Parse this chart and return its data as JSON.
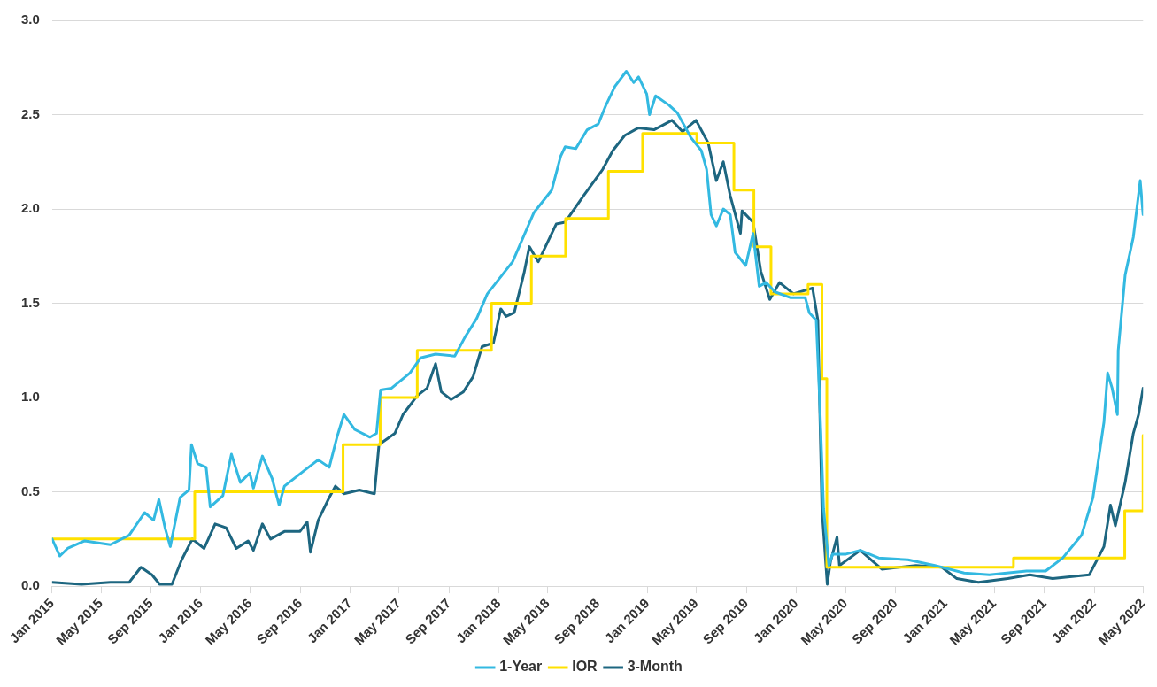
{
  "chart_data": {
    "type": "line",
    "legend": "bottom",
    "grid": "y",
    "marker": "none",
    "line_style": "solid",
    "ylim": [
      0,
      3
    ],
    "yticks": [
      {
        "value": 0,
        "label": "0.0"
      },
      {
        "value": 0.5,
        "label": "0.5"
      },
      {
        "value": 1,
        "label": "1.0"
      },
      {
        "value": 1.5,
        "label": "1.5"
      },
      {
        "value": 2,
        "label": "2.0"
      },
      {
        "value": 2.5,
        "label": "2.5"
      },
      {
        "value": 3,
        "label": "3.0"
      }
    ],
    "xlim": [
      "2015-01-01",
      "2022-05-01"
    ],
    "xticks": [
      {
        "value": "2015-01",
        "label": "Jan 2015"
      },
      {
        "value": "2015-05",
        "label": "May 2015"
      },
      {
        "value": "2015-09",
        "label": "Sep 2015"
      },
      {
        "value": "2016-01",
        "label": "Jan 2016"
      },
      {
        "value": "2016-05",
        "label": "May 2016"
      },
      {
        "value": "2016-09",
        "label": "Sep 2016"
      },
      {
        "value": "2017-01",
        "label": "Jan 2017"
      },
      {
        "value": "2017-05",
        "label": "May 2017"
      },
      {
        "value": "2017-09",
        "label": "Sep 2017"
      },
      {
        "value": "2018-01",
        "label": "Jan 2018"
      },
      {
        "value": "2018-05",
        "label": "May 2018"
      },
      {
        "value": "2018-09",
        "label": "Sep 2018"
      },
      {
        "value": "2019-01",
        "label": "Jan 2019"
      },
      {
        "value": "2019-05",
        "label": "May 2019"
      },
      {
        "value": "2019-09",
        "label": "Sep 2019"
      },
      {
        "value": "2020-01",
        "label": "Jan 2020"
      },
      {
        "value": "2020-05",
        "label": "May 2020"
      },
      {
        "value": "2020-09",
        "label": "Sep 2020"
      },
      {
        "value": "2021-01",
        "label": "Jan 2021"
      },
      {
        "value": "2021-05",
        "label": "May 2021"
      },
      {
        "value": "2021-09",
        "label": "Sep 2021"
      },
      {
        "value": "2022-01",
        "label": "Jan 2022"
      },
      {
        "value": "2022-05",
        "label": "May 2022"
      }
    ],
    "series": [
      {
        "name": "1-Year",
        "type": "line",
        "color": "#33b9e1",
        "x": [
          "2015-01-01",
          "2015-01-20",
          "2015-02-08",
          "2015-03-22",
          "2015-05-24",
          "2015-07-09",
          "2015-08-16",
          "2015-09-07",
          "2015-09-20",
          "2015-10-05",
          "2015-10-18",
          "2015-11-11",
          "2015-12-03",
          "2015-12-09",
          "2015-12-24",
          "2016-01-14",
          "2016-01-24",
          "2016-02-24",
          "2016-03-16",
          "2016-04-07",
          "2016-04-30",
          "2016-05-09",
          "2016-05-31",
          "2016-06-24",
          "2016-07-11",
          "2016-07-24",
          "2016-09-09",
          "2016-10-15",
          "2016-11-11",
          "2016-11-30",
          "2016-12-17",
          "2017-01-13",
          "2017-02-19",
          "2017-03-07",
          "2017-03-17",
          "2017-04-13",
          "2017-05-28",
          "2017-06-23",
          "2017-07-30",
          "2017-09-15",
          "2017-10-10",
          "2017-11-08",
          "2017-12-04",
          "2018-02-04",
          "2018-03-28",
          "2018-05-11",
          "2018-06-02",
          "2018-06-13",
          "2018-07-09",
          "2018-08-06",
          "2018-09-02",
          "2018-09-21",
          "2018-10-13",
          "2018-11-10",
          "2018-11-28",
          "2018-12-10",
          "2018-12-30",
          "2019-01-06",
          "2019-01-21",
          "2019-02-23",
          "2019-03-15",
          "2019-04-17",
          "2019-05-13",
          "2019-05-26",
          "2019-06-06",
          "2019-06-19",
          "2019-07-06",
          "2019-07-23",
          "2019-08-04",
          "2019-08-30",
          "2019-09-17",
          "2019-10-02",
          "2019-10-19",
          "2019-11-10",
          "2019-12-17",
          "2020-01-23",
          "2020-02-02",
          "2020-02-19",
          "2020-02-27",
          "2020-03-08",
          "2020-03-21",
          "2020-03-30",
          "2020-05-02",
          "2020-06-06",
          "2020-07-21",
          "2020-10-01",
          "2020-12-06",
          "2021-02-16",
          "2021-04-19",
          "2021-07-19",
          "2021-09-04",
          "2021-10-16",
          "2021-12-01",
          "2021-12-29",
          "2022-01-25",
          "2022-02-03",
          "2022-02-14",
          "2022-02-27",
          "2022-03-01",
          "2022-03-18",
          "2022-04-07",
          "2022-04-24",
          "2022-05-01"
        ],
        "values": [
          0.25,
          0.16,
          0.2,
          0.24,
          0.22,
          0.27,
          0.39,
          0.35,
          0.46,
          0.31,
          0.21,
          0.47,
          0.51,
          0.75,
          0.65,
          0.63,
          0.42,
          0.48,
          0.7,
          0.55,
          0.6,
          0.52,
          0.69,
          0.57,
          0.43,
          0.53,
          0.61,
          0.67,
          0.63,
          0.79,
          0.91,
          0.83,
          0.79,
          0.81,
          1.04,
          1.05,
          1.13,
          1.21,
          1.23,
          1.22,
          1.32,
          1.42,
          1.55,
          1.72,
          1.98,
          2.1,
          2.28,
          2.33,
          2.32,
          2.42,
          2.45,
          2.55,
          2.65,
          2.73,
          2.67,
          2.7,
          2.61,
          2.5,
          2.6,
          2.55,
          2.51,
          2.38,
          2.31,
          2.21,
          1.97,
          1.91,
          2.0,
          1.97,
          1.77,
          1.7,
          1.87,
          1.59,
          1.61,
          1.56,
          1.53,
          1.53,
          1.45,
          1.41,
          1.01,
          0.41,
          0.11,
          0.17,
          0.17,
          0.19,
          0.15,
          0.14,
          0.11,
          0.07,
          0.06,
          0.08,
          0.08,
          0.15,
          0.27,
          0.47,
          0.87,
          1.13,
          1.05,
          0.91,
          1.25,
          1.65,
          1.85,
          2.15,
          1.97
        ]
      },
      {
        "name": "IOR",
        "type": "step",
        "color": "#ffe100",
        "x": [
          "2015-01-01",
          "2015-12-17",
          "2016-12-15",
          "2017-03-16",
          "2017-06-15",
          "2017-12-14",
          "2018-03-22",
          "2018-06-14",
          "2018-09-27",
          "2018-12-20",
          "2019-05-02",
          "2019-08-01",
          "2019-09-19",
          "2019-10-31",
          "2020-01-30",
          "2020-03-04",
          "2020-03-16",
          "2021-06-17",
          "2022-03-17",
          "2022-05-01"
        ],
        "values": [
          0.25,
          0.5,
          0.75,
          1.0,
          1.25,
          1.5,
          1.75,
          1.95,
          2.2,
          2.4,
          2.35,
          2.1,
          1.8,
          1.55,
          1.6,
          1.1,
          0.1,
          0.15,
          0.4,
          0.8
        ]
      },
      {
        "name": "3-Month",
        "type": "line",
        "color": "#1d6680",
        "x": [
          "2015-01-01",
          "2015-03-14",
          "2015-05-24",
          "2015-07-09",
          "2015-08-07",
          "2015-09-03",
          "2015-09-22",
          "2015-10-22",
          "2015-11-15",
          "2015-12-11",
          "2016-01-09",
          "2016-02-05",
          "2016-03-03",
          "2016-03-28",
          "2016-04-26",
          "2016-05-09",
          "2016-05-31",
          "2016-06-20",
          "2016-07-24",
          "2016-08-31",
          "2016-09-18",
          "2016-09-26",
          "2016-10-15",
          "2016-11-11",
          "2016-11-26",
          "2016-12-17",
          "2017-01-24",
          "2017-03-02",
          "2017-03-13",
          "2017-04-21",
          "2017-05-11",
          "2017-06-15",
          "2017-07-09",
          "2017-07-30",
          "2017-08-13",
          "2017-09-06",
          "2017-10-06",
          "2017-10-30",
          "2017-11-21",
          "2017-12-19",
          "2018-01-06",
          "2018-01-19",
          "2018-02-08",
          "2018-03-04",
          "2018-03-17",
          "2018-04-08",
          "2018-05-22",
          "2018-06-13",
          "2018-07-28",
          "2018-09-13",
          "2018-10-08",
          "2018-11-06",
          "2018-12-10",
          "2019-01-17",
          "2019-03-02",
          "2019-03-28",
          "2019-04-30",
          "2019-05-30",
          "2019-06-19",
          "2019-07-06",
          "2019-07-23",
          "2019-08-17",
          "2019-08-21",
          "2019-09-17",
          "2019-10-06",
          "2019-10-28",
          "2019-11-21",
          "2019-12-25",
          "2020-02-10",
          "2020-02-23",
          "2020-03-04",
          "2020-03-17",
          "2020-03-25",
          "2020-04-10",
          "2020-04-16",
          "2020-06-06",
          "2020-07-29",
          "2020-10-21",
          "2020-12-23",
          "2021-01-29",
          "2021-03-23",
          "2021-06-03",
          "2021-07-27",
          "2021-09-21",
          "2021-12-20",
          "2022-01-25",
          "2022-02-10",
          "2022-02-22",
          "2022-03-18",
          "2022-04-07",
          "2022-04-20",
          "2022-05-01"
        ],
        "values": [
          0.02,
          0.01,
          0.02,
          0.02,
          0.1,
          0.06,
          0.01,
          0.01,
          0.14,
          0.25,
          0.2,
          0.33,
          0.31,
          0.2,
          0.24,
          0.19,
          0.33,
          0.25,
          0.29,
          0.29,
          0.34,
          0.18,
          0.35,
          0.47,
          0.53,
          0.49,
          0.51,
          0.49,
          0.75,
          0.81,
          0.91,
          1.01,
          1.05,
          1.18,
          1.03,
          0.99,
          1.03,
          1.11,
          1.27,
          1.29,
          1.47,
          1.43,
          1.45,
          1.66,
          1.8,
          1.72,
          1.92,
          1.93,
          2.07,
          2.21,
          2.31,
          2.39,
          2.43,
          2.42,
          2.47,
          2.41,
          2.47,
          2.35,
          2.15,
          2.25,
          2.07,
          1.87,
          1.99,
          1.93,
          1.67,
          1.52,
          1.61,
          1.55,
          1.58,
          1.41,
          0.41,
          0.01,
          0.13,
          0.26,
          0.11,
          0.19,
          0.09,
          0.11,
          0.1,
          0.04,
          0.02,
          0.04,
          0.06,
          0.04,
          0.06,
          0.21,
          0.43,
          0.32,
          0.55,
          0.81,
          0.91,
          1.05
        ]
      }
    ]
  }
}
